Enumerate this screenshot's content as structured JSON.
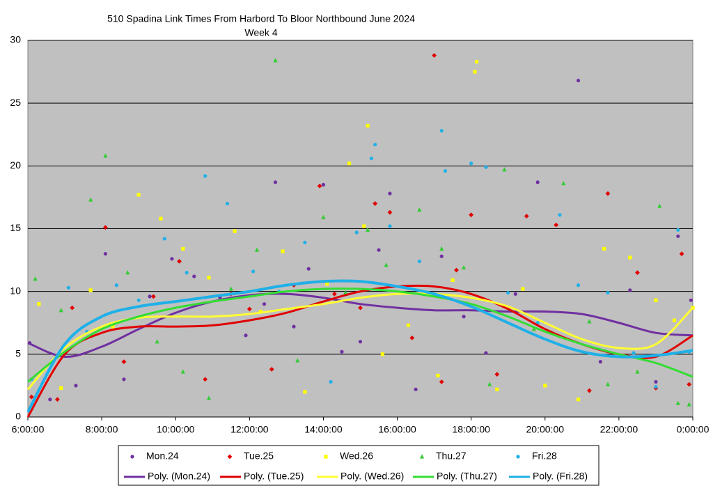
{
  "chart_data": {
    "type": "scatter",
    "title": "510 Spadina Link Times From Harbord To Bloor Northbound June 2024",
    "subtitle": "Week 4",
    "xlim": [
      6,
      24
    ],
    "xticks": [
      {
        "value": 6,
        "label": "6:00:00"
      },
      {
        "value": 8,
        "label": "8:00:00"
      },
      {
        "value": 10,
        "label": "10:00:00"
      },
      {
        "value": 12,
        "label": "12:00:00"
      },
      {
        "value": 14,
        "label": "14:00:00"
      },
      {
        "value": 16,
        "label": "16:00:00"
      },
      {
        "value": 18,
        "label": "18:00:00"
      },
      {
        "value": 20,
        "label": "20:00:00"
      },
      {
        "value": 22,
        "label": "22:00:00"
      },
      {
        "value": 24,
        "label": "0:00:00"
      }
    ],
    "ylim": [
      0,
      30
    ],
    "yticks": [
      0,
      5,
      10,
      15,
      20,
      25,
      30
    ],
    "grid": true,
    "series": [
      {
        "name": "Mon.24",
        "color": "#7030a0",
        "marker": "circle",
        "x": [
          6.05,
          6.6,
          7.3,
          8.1,
          8.6,
          9.3,
          9.9,
          10.5,
          11.2,
          11.9,
          12.4,
          12.7,
          13.2,
          13.6,
          14.0,
          14.5,
          15.0,
          15.5,
          15.8,
          16.5,
          17.2,
          17.8,
          18.4,
          19.2,
          19.8,
          20.9,
          21.5,
          22.3,
          23.0,
          23.6,
          23.95
        ],
        "values": [
          5.9,
          1.4,
          2.5,
          13.0,
          3.0,
          9.6,
          12.6,
          11.2,
          9.5,
          6.5,
          9.0,
          18.7,
          7.2,
          11.8,
          18.5,
          5.2,
          6.0,
          13.3,
          17.8,
          2.2,
          12.8,
          8.0,
          5.1,
          9.8,
          18.7,
          26.8,
          4.4,
          10.1,
          2.8,
          14.4,
          9.3
        ]
      },
      {
        "name": "Tue.25",
        "color": "#e00000",
        "marker": "diamond",
        "x": [
          6.1,
          6.8,
          7.2,
          8.1,
          8.6,
          9.4,
          10.1,
          10.8,
          11.5,
          12.0,
          12.6,
          13.2,
          13.9,
          14.3,
          15.0,
          15.4,
          15.8,
          16.4,
          17.0,
          17.2,
          17.6,
          18.0,
          18.7,
          19.5,
          20.3,
          21.2,
          21.7,
          22.5,
          23.0,
          23.7,
          23.9
        ],
        "values": [
          1.6,
          1.4,
          8.7,
          15.1,
          4.4,
          9.6,
          12.4,
          3.0,
          9.8,
          8.6,
          3.8,
          10.5,
          18.4,
          9.8,
          8.7,
          17.0,
          16.3,
          6.3,
          28.8,
          2.8,
          11.7,
          16.1,
          3.4,
          16.0,
          15.3,
          2.1,
          17.8,
          11.5,
          2.3,
          13.0,
          2.6
        ]
      },
      {
        "name": "Wed.26",
        "color": "#ffff00",
        "marker": "square",
        "x": [
          6.3,
          6.9,
          7.7,
          8.3,
          9.0,
          9.6,
          10.2,
          10.9,
          11.6,
          12.3,
          12.9,
          13.5,
          14.1,
          14.7,
          15.1,
          15.2,
          15.6,
          16.3,
          17.1,
          17.5,
          18.1,
          18.15,
          18.7,
          19.4,
          20.0,
          20.9,
          21.6,
          22.3,
          23.0,
          23.5,
          24.0
        ],
        "values": [
          9.0,
          2.3,
          10.1,
          7.2,
          17.7,
          15.8,
          13.4,
          11.1,
          14.8,
          8.4,
          13.2,
          2.0,
          10.6,
          20.2,
          15.2,
          23.2,
          5.0,
          7.3,
          3.3,
          10.9,
          27.5,
          28.3,
          2.2,
          10.2,
          2.5,
          1.4,
          13.4,
          12.7,
          9.3,
          7.7,
          8.7
        ]
      },
      {
        "name": "Thu.27",
        "color": "#33cc33",
        "marker": "triangle",
        "x": [
          6.2,
          6.9,
          7.7,
          8.1,
          8.7,
          9.5,
          10.2,
          10.9,
          11.5,
          12.2,
          12.7,
          13.3,
          14.0,
          14.6,
          15.2,
          15.7,
          16.6,
          17.2,
          17.8,
          18.5,
          18.9,
          19.7,
          20.5,
          21.2,
          21.7,
          22.5,
          23.1,
          23.6,
          23.9
        ],
        "values": [
          11.0,
          8.5,
          17.3,
          20.8,
          11.5,
          6.0,
          3.6,
          1.5,
          10.2,
          13.3,
          28.4,
          4.5,
          15.9,
          9.9,
          14.9,
          12.1,
          16.5,
          13.4,
          11.9,
          2.6,
          19.7,
          7.0,
          18.6,
          7.6,
          2.6,
          3.6,
          16.8,
          1.1,
          1.0
        ]
      },
      {
        "name": "Fri.28",
        "color": "#1fb0e8",
        "marker": "circle",
        "x": [
          6.1,
          7.1,
          7.6,
          8.4,
          9.0,
          9.7,
          10.3,
          10.8,
          11.4,
          12.1,
          12.8,
          13.5,
          14.2,
          14.9,
          15.3,
          15.4,
          15.8,
          16.6,
          17.2,
          17.3,
          18.0,
          18.4,
          19.0,
          19.8,
          20.4,
          20.9,
          21.7,
          22.4,
          23.0,
          23.6,
          23.9
        ],
        "values": [
          3.0,
          10.3,
          6.8,
          10.5,
          9.3,
          14.2,
          11.5,
          19.2,
          17.0,
          11.6,
          10.0,
          13.9,
          2.8,
          14.7,
          20.6,
          21.7,
          15.2,
          12.4,
          22.8,
          19.6,
          20.2,
          19.9,
          9.9,
          7.5,
          16.1,
          10.5,
          9.9,
          5.1,
          2.4,
          14.9,
          5.2
        ]
      }
    ],
    "trendlines": [
      {
        "name": "Poly. (Mon.24)",
        "color": "#7030a0",
        "x": [
          6,
          7,
          8,
          9,
          10,
          11,
          12,
          13,
          14,
          15,
          16,
          17,
          18,
          19,
          20,
          21,
          22,
          23,
          24
        ],
        "values": [
          5.9,
          4.8,
          5.6,
          7.0,
          8.3,
          9.2,
          9.7,
          9.8,
          9.5,
          9.0,
          8.7,
          8.5,
          8.5,
          8.4,
          8.4,
          8.2,
          7.5,
          6.7,
          6.5
        ]
      },
      {
        "name": "Poly. (Tue.25)",
        "color": "#e00000",
        "x": [
          6,
          7,
          8,
          9,
          10,
          11,
          12,
          13,
          14,
          15,
          16,
          17,
          18,
          19,
          20,
          21,
          22,
          23,
          24
        ],
        "values": [
          0,
          5.0,
          6.7,
          7.2,
          7.2,
          7.3,
          7.7,
          8.3,
          9.2,
          10.0,
          10.4,
          10.4,
          9.8,
          8.6,
          7.0,
          5.8,
          5.0,
          4.8,
          6.5
        ]
      },
      {
        "name": "Poly. (Wed.26)",
        "color": "#ffff33",
        "x": [
          6,
          7,
          8,
          9,
          10,
          11,
          12,
          13,
          14,
          15,
          16,
          17,
          18,
          19,
          20,
          21,
          22,
          23,
          24
        ],
        "values": [
          2.2,
          5.5,
          7.2,
          7.9,
          8.0,
          8.0,
          8.2,
          8.6,
          9.0,
          9.5,
          9.8,
          9.8,
          9.5,
          8.8,
          7.5,
          6.2,
          5.5,
          5.8,
          8.7
        ]
      },
      {
        "name": "Poly. (Thu.27)",
        "color": "#33dd33",
        "x": [
          6,
          7,
          8,
          9,
          10,
          11,
          12,
          13,
          14,
          15,
          16,
          17,
          18,
          19,
          20,
          21,
          22,
          23,
          24
        ],
        "values": [
          2.8,
          5.2,
          7.0,
          8.0,
          8.7,
          9.2,
          9.6,
          10.0,
          10.2,
          10.2,
          10.0,
          9.6,
          9.0,
          8.0,
          6.8,
          5.8,
          5.0,
          4.3,
          3.2
        ]
      },
      {
        "name": "Poly. (Fri.28)",
        "color": "#1fb0e8",
        "x": [
          6,
          7,
          8,
          9,
          10,
          11,
          12,
          13,
          14,
          15,
          16,
          17,
          18,
          19,
          20,
          21,
          22,
          23,
          24
        ],
        "values": [
          0.4,
          5.8,
          8.0,
          8.8,
          9.2,
          9.6,
          10.0,
          10.5,
          10.8,
          10.8,
          10.4,
          9.8,
          8.8,
          7.5,
          6.2,
          5.2,
          4.8,
          4.9,
          5.3
        ]
      }
    ]
  }
}
